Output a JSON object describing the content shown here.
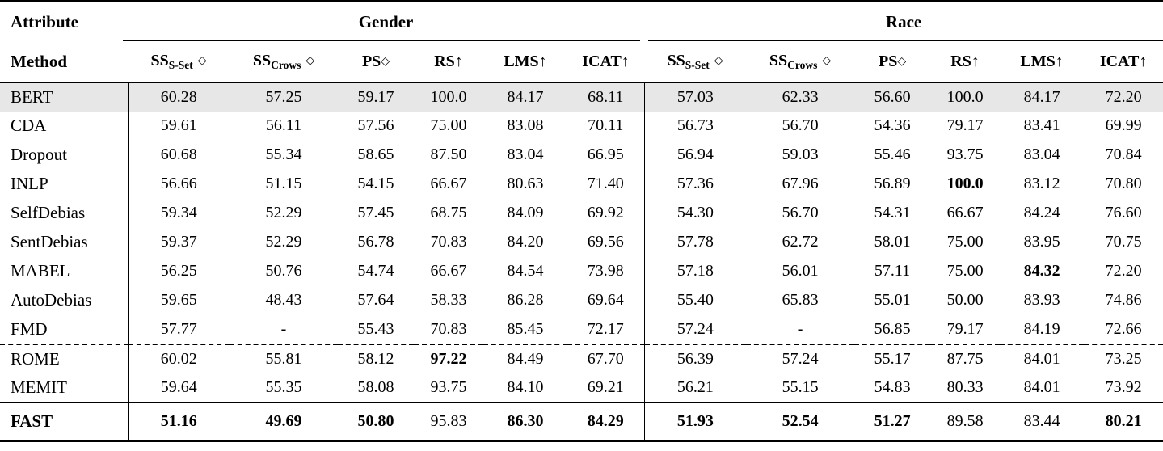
{
  "table": {
    "corner_row1": "Attribute",
    "corner_row2": "Method",
    "groups": [
      {
        "id": "gender",
        "label": "Gender"
      },
      {
        "id": "race",
        "label": "Race"
      }
    ],
    "metric_headers": [
      {
        "id": "ss-sset",
        "base": "SS",
        "sub": "S-Set",
        "mark": "◇",
        "gap": true
      },
      {
        "id": "ss-crows",
        "base": "SS",
        "sub": "Crows",
        "mark": "◇",
        "gap": true
      },
      {
        "id": "ps",
        "base": "PS",
        "sub": "",
        "mark": "◇",
        "gap": false
      },
      {
        "id": "rs",
        "base": "RS",
        "sub": "",
        "mark": "↑",
        "gap": false
      },
      {
        "id": "lms",
        "base": "LMS",
        "sub": "",
        "mark": "↑",
        "gap": false
      },
      {
        "id": "icat",
        "base": "ICAT",
        "sub": "",
        "mark": "↑",
        "gap": false
      }
    ],
    "rows": [
      {
        "method": "BERT",
        "highlight": true,
        "values": [
          "60.28",
          "57.25",
          "59.17",
          "100.0",
          "84.17",
          "68.11",
          "57.03",
          "62.33",
          "56.60",
          "100.0",
          "84.17",
          "72.20"
        ],
        "bold": []
      },
      {
        "method": "CDA",
        "values": [
          "59.61",
          "56.11",
          "57.56",
          "75.00",
          "83.08",
          "70.11",
          "56.73",
          "56.70",
          "54.36",
          "79.17",
          "83.41",
          "69.99"
        ],
        "bold": []
      },
      {
        "method": "Dropout",
        "values": [
          "60.68",
          "55.34",
          "58.65",
          "87.50",
          "83.04",
          "66.95",
          "56.94",
          "59.03",
          "55.46",
          "93.75",
          "83.04",
          "70.84"
        ],
        "bold": []
      },
      {
        "method": "INLP",
        "values": [
          "56.66",
          "51.15",
          "54.15",
          "66.67",
          "80.63",
          "71.40",
          "57.36",
          "67.96",
          "56.89",
          "100.0",
          "83.12",
          "70.80"
        ],
        "bold": [
          9
        ]
      },
      {
        "method": "SelfDebias",
        "values": [
          "59.34",
          "52.29",
          "57.45",
          "68.75",
          "84.09",
          "69.92",
          "54.30",
          "56.70",
          "54.31",
          "66.67",
          "84.24",
          "76.60"
        ],
        "bold": []
      },
      {
        "method": "SentDebias",
        "values": [
          "59.37",
          "52.29",
          "56.78",
          "70.83",
          "84.20",
          "69.56",
          "57.78",
          "62.72",
          "58.01",
          "75.00",
          "83.95",
          "70.75"
        ],
        "bold": []
      },
      {
        "method": "MABEL",
        "values": [
          "56.25",
          "50.76",
          "54.74",
          "66.67",
          "84.54",
          "73.98",
          "57.18",
          "56.01",
          "57.11",
          "75.00",
          "84.32",
          "72.20"
        ],
        "bold": [
          10
        ]
      },
      {
        "method": "AutoDebias",
        "values": [
          "59.65",
          "48.43",
          "57.64",
          "58.33",
          "86.28",
          "69.64",
          "55.40",
          "65.83",
          "55.01",
          "50.00",
          "83.93",
          "74.86"
        ],
        "bold": []
      },
      {
        "method": "FMD",
        "values": [
          "57.77",
          "-",
          "55.43",
          "70.83",
          "85.45",
          "72.17",
          "57.24",
          "-",
          "56.85",
          "79.17",
          "84.19",
          "72.66"
        ],
        "bold": []
      },
      {
        "method": "ROME",
        "dashed_top": true,
        "values": [
          "60.02",
          "55.81",
          "58.12",
          "97.22",
          "84.49",
          "67.70",
          "56.39",
          "57.24",
          "55.17",
          "87.75",
          "84.01",
          "73.25"
        ],
        "bold": [
          3
        ]
      },
      {
        "method": "MEMIT",
        "values": [
          "59.64",
          "55.35",
          "58.08",
          "93.75",
          "84.10",
          "69.21",
          "56.21",
          "55.15",
          "54.83",
          "80.33",
          "84.01",
          "73.92"
        ],
        "bold": []
      },
      {
        "method": "FAST",
        "footer": true,
        "values": [
          "51.16",
          "49.69",
          "50.80",
          "95.83",
          "86.30",
          "84.29",
          "51.93",
          "52.54",
          "51.27",
          "89.58",
          "83.44",
          "80.21"
        ],
        "bold": [
          0,
          1,
          2,
          4,
          5,
          6,
          7,
          8,
          11
        ]
      }
    ]
  },
  "colors": {
    "highlight_row_bg": "#e7e7e7",
    "text": "#000000",
    "rule": "#000000"
  }
}
